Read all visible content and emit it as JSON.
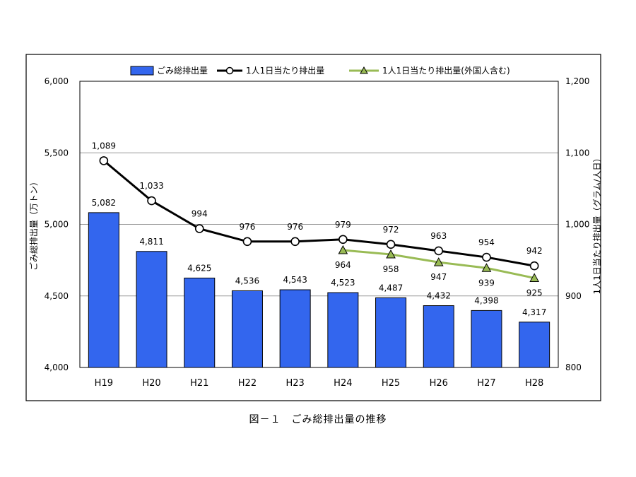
{
  "caption": "図－１　ごみ総排出量の推移",
  "chart_data": {
    "type": "bar+line",
    "categories": [
      "H19",
      "H20",
      "H21",
      "H22",
      "H23",
      "H24",
      "H25",
      "H26",
      "H27",
      "H28"
    ],
    "bar_series": {
      "name": "ごみ総排出量",
      "values": [
        5082,
        4811,
        4625,
        4536,
        4543,
        4523,
        4487,
        4432,
        4398,
        4317
      ],
      "labels": [
        "5,082",
        "4,811",
        "4,625",
        "4,536",
        "4,543",
        "4,523",
        "4,487",
        "4,432",
        "4,398",
        "4,317"
      ],
      "color": "#3366ee"
    },
    "line_series": [
      {
        "name": "1人1日当たり排出量",
        "start_index": 0,
        "values": [
          1089,
          1033,
          994,
          976,
          976,
          979,
          972,
          963,
          954,
          942
        ],
        "labels": [
          "1,089",
          "1,033",
          "994",
          "976",
          "976",
          "979",
          "972",
          "963",
          "954",
          "942"
        ],
        "color": "#000000",
        "marker": "circle"
      },
      {
        "name": "1人1日当たり排出量(外国人含む)",
        "start_index": 5,
        "values": [
          964,
          958,
          947,
          939,
          925
        ],
        "labels": [
          "964",
          "958",
          "947",
          "939",
          "925"
        ],
        "color": "#99bb55",
        "marker": "triangle"
      }
    ],
    "ylabel_left": "ごみ総排出量（万トン）",
    "ylabel_right": "1人1日当たり排出量（グラム/人日）",
    "ylim_left": [
      4000,
      6000
    ],
    "ylim_right": [
      800,
      1200
    ],
    "yticks_left": [
      "4,000",
      "4,500",
      "5,000",
      "5,500",
      "6,000"
    ],
    "yticks_right": [
      "800",
      "900",
      "1,000",
      "1,100",
      "1,200"
    ],
    "grid": true,
    "legend": "top"
  }
}
